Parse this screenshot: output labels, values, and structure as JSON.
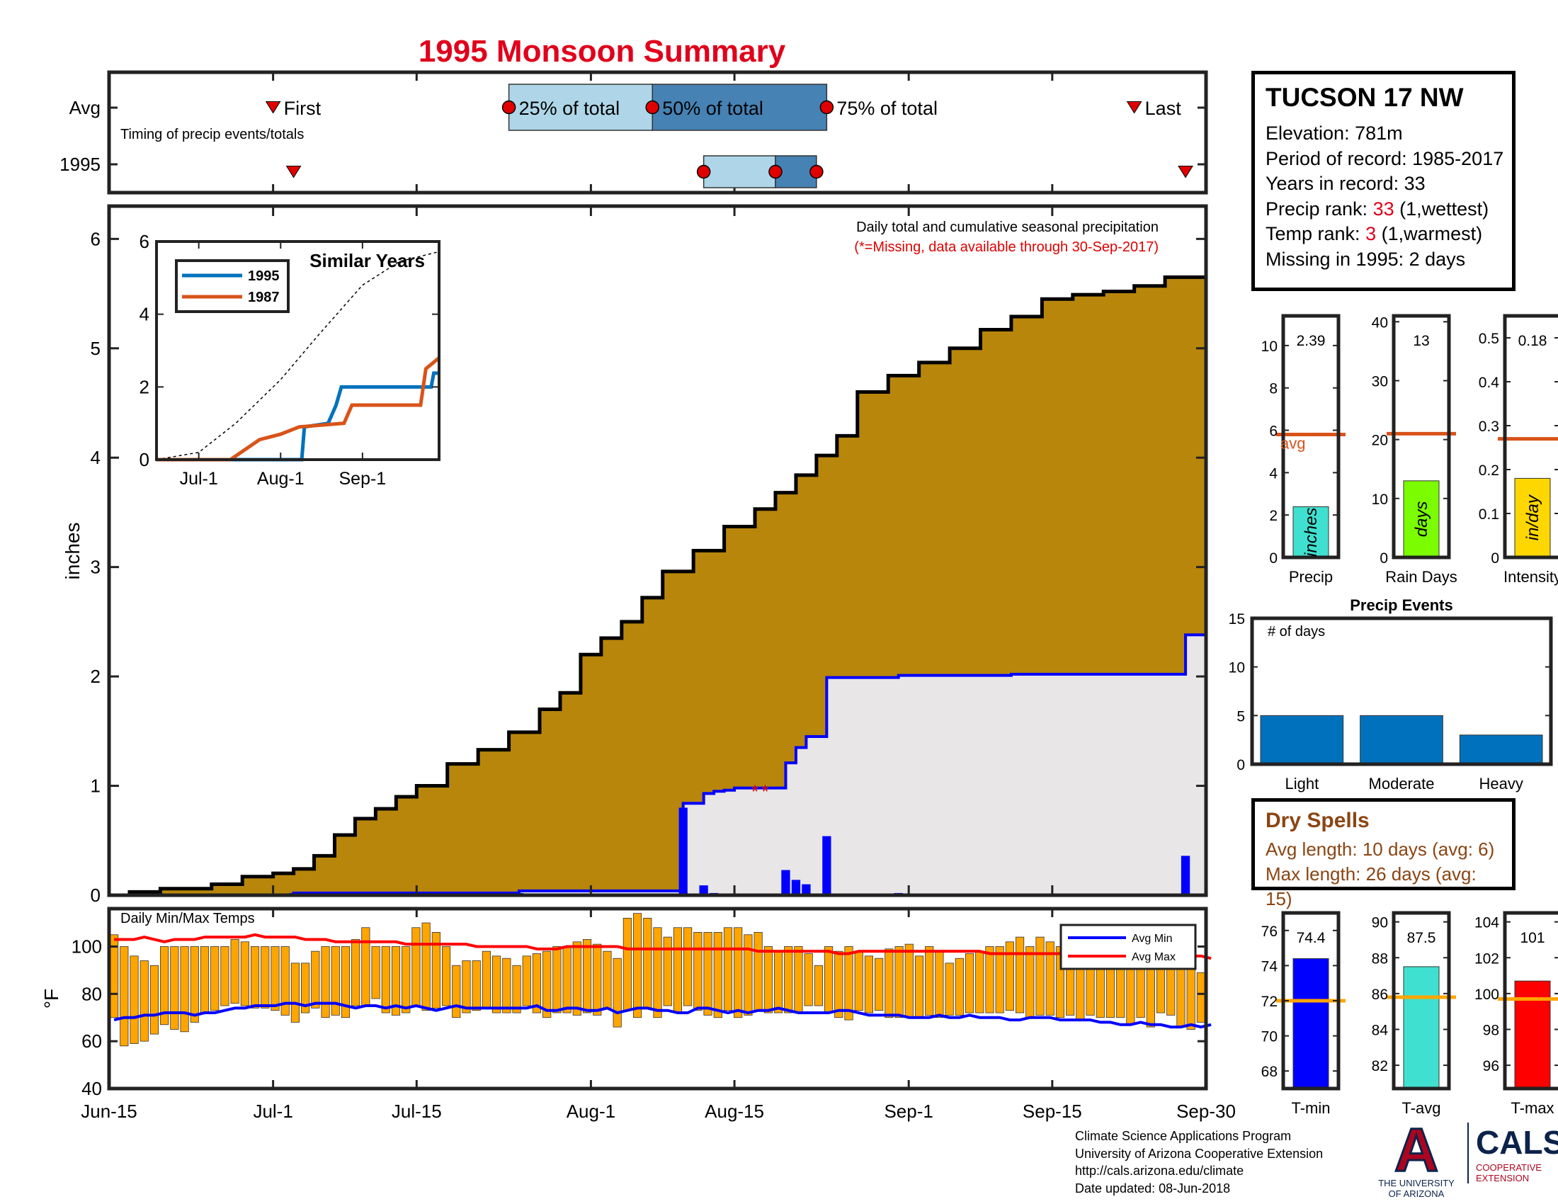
{
  "page": {
    "title": "1995 Monsoon Summary",
    "footer": [
      "Climate Science Applications Program",
      "University of Arizona Cooperative Extension",
      "http://cals.arizona.edu/climate",
      "Date updated: 08-Jun-2018"
    ],
    "logo_ua_lines": [
      "THE UNIVERSITY",
      "OF ARIZONA"
    ],
    "logo_ua_mark": "A",
    "logo_cals_title": "CALS",
    "logo_cals_lines": [
      "COOPERATIVE",
      "EXTENSION"
    ]
  },
  "station": {
    "name": "TUCSON 17 NW",
    "elevation": "Elevation: 781m",
    "period": "Period of record: 1985-2017",
    "years": "Years in record: 33",
    "precip_rank_label": "Precip rank: ",
    "precip_rank_value": "33",
    "precip_rank_note": " (1,wettest)",
    "temp_rank_label": "Temp rank: ",
    "temp_rank_value": "3",
    "temp_rank_note": " (1,warmest)",
    "missing": "Missing in 1995: 2 days"
  },
  "dry_spells": {
    "title": "Dry Spells",
    "avg_length": "Avg length: 10 days (avg: 6)",
    "max_length": "Max length: 26 days (avg: 15)"
  },
  "chart_data": [
    {
      "id": "timing",
      "type": "box",
      "annotation": "Timing of precip events/totals",
      "rows": [
        "Avg",
        "1995"
      ],
      "x_ticks": [
        "Jun-15",
        "Jul-1",
        "Jul-15",
        "Aug-1",
        "Aug-15",
        "Sep-1",
        "Sep-15",
        "Sep-30"
      ],
      "avg": {
        "first": "2018-07-01",
        "p25": "2018-07-24",
        "p50": "2018-08-07",
        "p75": "2018-08-24",
        "last": "2018-09-23"
      },
      "year": {
        "first": "2018-07-03",
        "p25": "2018-08-12",
        "p50": "2018-08-19",
        "p75": "2018-08-23",
        "last": "2018-09-28"
      },
      "labels": {
        "first": "First",
        "p25": "25% of total",
        "p50": "50% of total",
        "p75": "75% of total",
        "last": "Last"
      }
    },
    {
      "id": "cumulative",
      "type": "area",
      "title": "Daily total and cumulative seasonal precipitation",
      "subtitle": "(*=Missing, data available through 30-Sep-2017)",
      "ylabel": "inches",
      "ylim": [
        0,
        6.3
      ],
      "yticks": [
        0,
        1,
        2,
        3,
        4,
        5,
        6
      ],
      "x_ticks": [
        "Jun-15",
        "Jul-1",
        "Jul-15",
        "Aug-1",
        "Aug-15",
        "Sep-1",
        "Sep-15",
        "Sep-30"
      ],
      "x_range": [
        "2018-06-15",
        "2018-09-30"
      ],
      "avg_cumulative": [
        [
          "2018-06-15",
          0
        ],
        [
          "2018-06-17",
          0.03
        ],
        [
          "2018-06-20",
          0.06
        ],
        [
          "2018-06-25",
          0.1
        ],
        [
          "2018-06-28",
          0.17
        ],
        [
          "2018-07-01",
          0.2
        ],
        [
          "2018-07-03",
          0.24
        ],
        [
          "2018-07-05",
          0.36
        ],
        [
          "2018-07-07",
          0.55
        ],
        [
          "2018-07-09",
          0.7
        ],
        [
          "2018-07-11",
          0.79
        ],
        [
          "2018-07-13",
          0.9
        ],
        [
          "2018-07-15",
          1.0
        ],
        [
          "2018-07-18",
          1.2
        ],
        [
          "2018-07-21",
          1.33
        ],
        [
          "2018-07-24",
          1.49
        ],
        [
          "2018-07-27",
          1.7
        ],
        [
          "2018-07-29",
          1.85
        ],
        [
          "2018-07-31",
          2.2
        ],
        [
          "2018-08-02",
          2.35
        ],
        [
          "2018-08-04",
          2.5
        ],
        [
          "2018-08-06",
          2.72
        ],
        [
          "2018-08-08",
          2.96
        ],
        [
          "2018-08-11",
          3.15
        ],
        [
          "2018-08-14",
          3.37
        ],
        [
          "2018-08-17",
          3.53
        ],
        [
          "2018-08-19",
          3.68
        ],
        [
          "2018-08-21",
          3.84
        ],
        [
          "2018-08-23",
          4.02
        ],
        [
          "2018-08-25",
          4.2
        ],
        [
          "2018-08-27",
          4.6
        ],
        [
          "2018-08-30",
          4.75
        ],
        [
          "2018-09-02",
          4.87
        ],
        [
          "2018-09-05",
          5.0
        ],
        [
          "2018-09-08",
          5.17
        ],
        [
          "2018-09-11",
          5.29
        ],
        [
          "2018-09-14",
          5.45
        ],
        [
          "2018-09-17",
          5.49
        ],
        [
          "2018-09-20",
          5.52
        ],
        [
          "2018-09-23",
          5.57
        ],
        [
          "2018-09-26",
          5.65
        ],
        [
          "2018-09-30",
          5.72
        ]
      ],
      "year_cumulative": [
        [
          "2018-06-15",
          0
        ],
        [
          "2018-07-03",
          0.02
        ],
        [
          "2018-07-25",
          0.04
        ],
        [
          "2018-08-09",
          0.04
        ],
        [
          "2018-08-10",
          0.84
        ],
        [
          "2018-08-11",
          0.84
        ],
        [
          "2018-08-12",
          0.93
        ],
        [
          "2018-08-13",
          0.95
        ],
        [
          "2018-08-14",
          0.96
        ],
        [
          "2018-08-15",
          0.98
        ],
        [
          "2018-08-16",
          0.98
        ],
        [
          "2018-08-19",
          0.98
        ],
        [
          "2018-08-20",
          1.21
        ],
        [
          "2018-08-21",
          1.35
        ],
        [
          "2018-08-22",
          1.45
        ],
        [
          "2018-08-23",
          1.45
        ],
        [
          "2018-08-24",
          1.99
        ],
        [
          "2018-08-25",
          1.99
        ],
        [
          "2018-08-31",
          2.01
        ],
        [
          "2018-09-11",
          2.02
        ],
        [
          "2018-09-27",
          2.02
        ],
        [
          "2018-09-28",
          2.38
        ],
        [
          "2018-09-30",
          2.38
        ]
      ],
      "daily_bars": [
        [
          "2018-07-03",
          0.02
        ],
        [
          "2018-07-25",
          0.02
        ],
        [
          "2018-08-10",
          0.8
        ],
        [
          "2018-08-12",
          0.09
        ],
        [
          "2018-08-13",
          0.02
        ],
        [
          "2018-08-14",
          0.01
        ],
        [
          "2018-08-20",
          0.23
        ],
        [
          "2018-08-21",
          0.14
        ],
        [
          "2018-08-22",
          0.1
        ],
        [
          "2018-08-24",
          0.54
        ],
        [
          "2018-08-31",
          0.02
        ],
        [
          "2018-09-11",
          0.01
        ],
        [
          "2018-09-28",
          0.36
        ]
      ],
      "missing_markers": [
        [
          "2018-08-17",
          0.98
        ],
        [
          "2018-08-18",
          0.98
        ]
      ],
      "missing_symbol": "*",
      "colors": {
        "avg_fill": "#b8860b",
        "year_fill": "#e8e6e6",
        "year_line": "#0000ff"
      }
    },
    {
      "id": "similar_years",
      "type": "line",
      "title": "Similar Years",
      "ylim": [
        0,
        6
      ],
      "yticks": [
        0,
        2,
        4,
        6
      ],
      "x_ticks": [
        "Jul-1",
        "Aug-1",
        "Sep-1"
      ],
      "x_range": [
        "2018-06-15",
        "2018-09-30"
      ],
      "series": [
        {
          "name": "1995",
          "color": "#0072bd",
          "values": [
            [
              "2018-06-15",
              0
            ],
            [
              "2018-08-09",
              0
            ],
            [
              "2018-08-10",
              0.9
            ],
            [
              "2018-08-19",
              1.0
            ],
            [
              "2018-08-22",
              1.5
            ],
            [
              "2018-08-24",
              2.0
            ],
            [
              "2018-09-27",
              2.0
            ],
            [
              "2018-09-28",
              2.38
            ],
            [
              "2018-09-30",
              2.38
            ]
          ]
        },
        {
          "name": "1987",
          "color": "#d95319",
          "values": [
            [
              "2018-06-15",
              0
            ],
            [
              "2018-07-13",
              0
            ],
            [
              "2018-07-15",
              0.1
            ],
            [
              "2018-07-24",
              0.55
            ],
            [
              "2018-08-01",
              0.7
            ],
            [
              "2018-08-08",
              0.9
            ],
            [
              "2018-08-25",
              1.0
            ],
            [
              "2018-08-28",
              1.5
            ],
            [
              "2018-09-23",
              1.5
            ],
            [
              "2018-09-25",
              2.5
            ],
            [
              "2018-09-30",
              2.8
            ]
          ]
        },
        {
          "name": "avg",
          "color": "#000000",
          "dashed": true,
          "values": [
            [
              "2018-06-15",
              0
            ],
            [
              "2018-07-01",
              0.2
            ],
            [
              "2018-07-15",
              1.0
            ],
            [
              "2018-08-01",
              2.2
            ],
            [
              "2018-08-15",
              3.4
            ],
            [
              "2018-09-01",
              4.8
            ],
            [
              "2018-09-15",
              5.45
            ],
            [
              "2018-09-30",
              5.72
            ]
          ]
        }
      ]
    },
    {
      "id": "temps",
      "type": "bar",
      "annotation": "Daily Min/Max Temps",
      "ylabel": "°F",
      "ylim": [
        40,
        116
      ],
      "yticks": [
        40,
        60,
        80,
        100
      ],
      "x_ticks": [
        "Jun-15",
        "Jul-1",
        "Jul-15",
        "Aug-1",
        "Aug-15",
        "Sep-1",
        "Sep-15",
        "Sep-30"
      ],
      "x_range": [
        "2018-06-15",
        "2018-09-30"
      ],
      "daily_min": [
        70,
        58,
        59,
        60,
        63,
        67,
        65,
        64,
        68,
        72,
        73,
        75,
        76,
        75,
        74,
        74,
        73,
        71,
        68,
        72,
        74,
        70,
        71,
        70,
        75,
        75,
        78,
        72,
        71,
        72,
        75,
        73,
        74,
        75,
        70,
        72,
        73,
        74,
        72,
        72,
        72,
        75,
        72,
        70,
        72,
        72,
        71,
        72,
        71,
        74,
        66,
        73,
        70,
        74,
        70,
        75,
        72,
        75,
        73,
        71,
        70,
        73,
        70,
        71,
        73,
        72,
        72,
        72,
        72,
        75,
        75,
        72,
        70,
        69,
        73,
        72,
        73,
        70,
        70,
        70,
        70,
        71,
        70,
        71,
        71,
        72,
        72,
        72,
        72,
        73,
        72,
        70,
        71,
        71,
        70,
        71,
        69,
        71,
        70,
        70,
        70,
        67,
        70,
        66,
        72,
        71,
        66,
        65,
        68
      ],
      "daily_max": [
        105,
        100,
        96,
        94,
        92,
        100,
        100,
        100,
        100,
        100,
        100,
        100,
        103,
        102,
        100,
        100,
        100,
        100,
        93,
        93,
        98,
        100,
        100,
        100,
        103,
        108,
        100,
        100,
        100,
        100,
        108,
        110,
        106,
        100,
        92,
        94,
        94,
        98,
        96,
        95,
        92,
        96,
        97,
        98,
        100,
        100,
        102,
        103,
        101,
        98,
        95,
        112,
        114,
        112,
        108,
        104,
        108,
        108,
        106,
        106,
        106,
        108,
        108,
        105,
        106,
        100,
        98,
        100,
        100,
        97,
        92,
        100,
        98,
        100,
        98,
        96,
        95,
        99,
        100,
        101,
        96,
        100,
        98,
        93,
        95,
        97,
        98,
        100,
        100,
        102,
        104,
        100,
        104,
        102,
        100,
        100,
        96,
        104,
        103,
        104,
        103,
        101,
        98,
        102,
        97,
        96,
        97,
        95,
        89
      ],
      "avg_min": [
        69,
        70,
        70,
        71,
        71,
        72,
        72,
        72,
        71,
        72,
        72,
        73,
        74,
        74,
        75,
        75,
        75,
        76,
        76,
        75,
        76,
        76,
        76,
        75,
        74,
        75,
        75,
        74,
        75,
        74,
        75,
        74,
        73,
        74,
        75,
        74,
        74,
        74,
        74,
        74,
        74,
        74,
        75,
        73,
        73,
        74,
        74,
        73,
        73,
        74,
        72,
        73,
        74,
        74,
        73,
        73,
        72,
        72,
        74,
        74,
        73,
        72,
        73,
        72,
        73,
        73,
        74,
        73,
        72,
        72,
        72,
        72,
        73,
        73,
        72,
        71,
        71,
        71,
        71,
        70,
        70,
        70,
        71,
        70,
        70,
        71,
        70,
        70,
        70,
        69,
        69,
        70,
        70,
        70,
        69,
        69,
        69,
        69,
        68,
        68,
        67,
        67,
        68,
        67,
        67,
        66,
        66,
        67,
        66,
        67
      ],
      "avg_max": [
        103,
        103,
        103,
        104,
        103,
        102,
        103,
        103,
        103,
        104,
        104,
        104,
        104,
        104,
        105,
        104,
        104,
        104,
        104,
        103,
        103,
        103,
        102,
        102,
        102,
        102,
        102,
        102,
        102,
        101,
        101,
        101,
        101,
        101,
        101,
        101,
        100,
        100,
        100,
        100,
        100,
        100,
        99,
        99,
        99,
        100,
        100,
        100,
        100,
        100,
        100,
        99,
        99,
        99,
        99,
        99,
        99,
        99,
        99,
        99,
        99,
        99,
        99,
        99,
        98,
        98,
        98,
        98,
        98,
        98,
        98,
        98,
        97,
        97,
        98,
        98,
        98,
        98,
        98,
        98,
        98,
        98,
        98,
        98,
        98,
        98,
        98,
        97,
        97,
        97,
        97,
        97,
        97,
        97,
        97,
        96,
        96,
        96,
        96,
        96,
        96,
        96,
        96,
        96,
        96,
        96,
        96,
        96,
        96,
        95
      ],
      "legend": [
        "Avg Min",
        "Avg Max"
      ],
      "legend_placement": "top-right",
      "colors": {
        "bars": "#ffa500",
        "avg_min": "#0000ff",
        "avg_max": "#ff0000"
      }
    },
    {
      "id": "precip_summary",
      "type": "bar",
      "panels": [
        {
          "category": "Precip",
          "value": 2.39,
          "value_label": "2.39",
          "avg": 5.8,
          "ylim": [
            0,
            11.4
          ],
          "yticks": [
            0,
            2,
            4,
            6,
            8,
            10
          ],
          "unit": "inches",
          "color": "#40e0d0",
          "avg_label": "avg"
        },
        {
          "category": "Rain Days",
          "value": 13,
          "value_label": "13",
          "avg": 21,
          "ylim": [
            0,
            41
          ],
          "yticks": [
            0,
            10,
            20,
            30,
            40
          ],
          "unit": "days",
          "color": "#7cfc00"
        },
        {
          "category": "Intensity",
          "value": 0.18,
          "value_label": "0.18",
          "avg": 0.27,
          "ylim": [
            0,
            0.55
          ],
          "yticks": [
            0,
            0.1,
            0.2,
            0.3,
            0.4,
            0.5
          ],
          "unit": "in/day",
          "color": "#ffd700"
        }
      ],
      "avg_color": "#d95319"
    },
    {
      "id": "precip_events",
      "type": "bar",
      "title": "Precip Events",
      "annotation": "# of days",
      "categories": [
        "Light",
        "Moderate",
        "Heavy"
      ],
      "values": [
        5,
        5,
        3
      ],
      "ylim": [
        0,
        15
      ],
      "yticks": [
        0,
        5,
        10,
        15
      ],
      "color": "#0072bd"
    },
    {
      "id": "temp_summary",
      "type": "bar",
      "panels": [
        {
          "category": "T-min",
          "value": 74.4,
          "value_label": "74.4",
          "avg": 72,
          "ylim": [
            67,
            77
          ],
          "yticks": [
            68,
            70,
            72,
            74,
            76
          ],
          "color": "#0000ff"
        },
        {
          "category": "T-avg",
          "value": 87.5,
          "value_label": "87.5",
          "avg": 85.8,
          "ylim": [
            80.7,
            90.5
          ],
          "yticks": [
            82,
            84,
            86,
            88,
            90
          ],
          "color": "#40e0d0"
        },
        {
          "category": "T-max",
          "value": 100.7,
          "value_label": "101",
          "avg": 99.7,
          "ylim": [
            94.7,
            104.5
          ],
          "yticks": [
            96,
            98,
            100,
            102,
            104
          ],
          "color": "#ff0000"
        }
      ],
      "avg_color": "#ffa500"
    }
  ]
}
